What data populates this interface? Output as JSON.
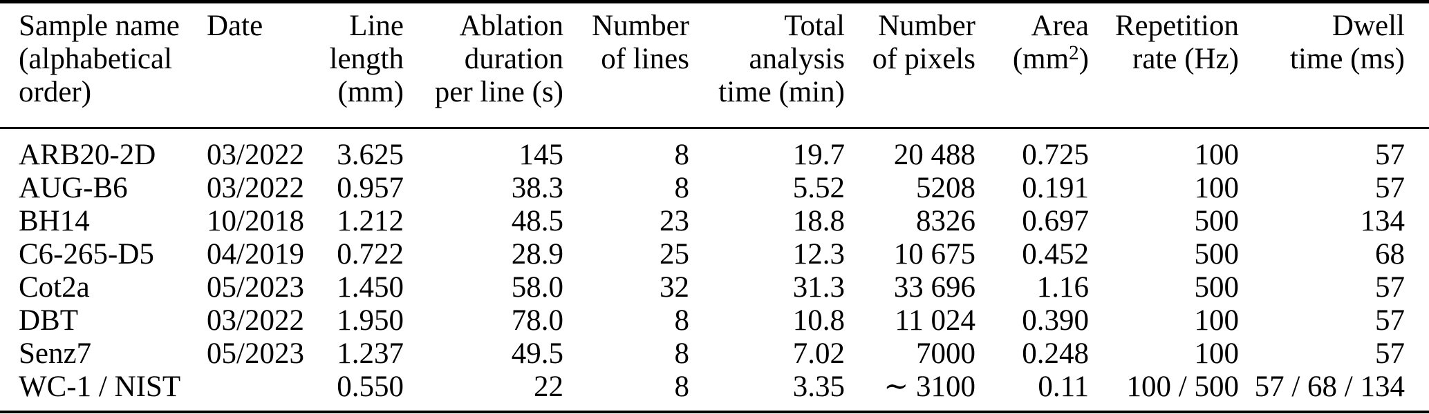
{
  "table": {
    "columns": [
      {
        "name": "sample-name",
        "lines": [
          "Sample name",
          "(alphabetical",
          "order)"
        ]
      },
      {
        "name": "date",
        "lines": [
          "Date",
          "",
          ""
        ]
      },
      {
        "name": "line-length",
        "lines": [
          "Line",
          "length",
          "(mm)"
        ]
      },
      {
        "name": "ablation-duration",
        "lines": [
          "Ablation",
          "duration",
          "per line (s)"
        ]
      },
      {
        "name": "number-of-lines",
        "lines": [
          "Number",
          "of lines",
          ""
        ]
      },
      {
        "name": "total-analysis-time",
        "lines": [
          "Total",
          "analysis",
          "time (min)"
        ]
      },
      {
        "name": "number-of-pixels",
        "lines": [
          "Number",
          "of pixels",
          ""
        ]
      },
      {
        "name": "area",
        "lines": [
          "Area",
          "",
          ""
        ],
        "unit_parts": [
          "(mm",
          "2",
          ")"
        ]
      },
      {
        "name": "repetition-rate",
        "lines": [
          "Repetition",
          "rate (Hz)",
          ""
        ]
      },
      {
        "name": "dwell-time",
        "lines": [
          "Dwell",
          "time (ms)",
          ""
        ]
      }
    ],
    "rows": [
      [
        "ARB20-2D",
        "03/2022",
        "3.625",
        "145",
        "8",
        "19.7",
        "20 488",
        "0.725",
        "100",
        "57"
      ],
      [
        "AUG-B6",
        "03/2022",
        "0.957",
        "38.3",
        "8",
        "5.52",
        "5208",
        "0.191",
        "100",
        "57"
      ],
      [
        "BH14",
        "10/2018",
        "1.212",
        "48.5",
        "23",
        "18.8",
        "8326",
        "0.697",
        "500",
        "134"
      ],
      [
        "C6-265-D5",
        "04/2019",
        "0.722",
        "28.9",
        "25",
        "12.3",
        "10 675",
        "0.452",
        "500",
        "68"
      ],
      [
        "Cot2a",
        "05/2023",
        "1.450",
        "58.0",
        "32",
        "31.3",
        "33 696",
        "1.16",
        "500",
        "57"
      ],
      [
        "DBT",
        "03/2022",
        "1.950",
        "78.0",
        "8",
        "10.8",
        "11 024",
        "0.390",
        "100",
        "57"
      ],
      [
        "Senz7",
        "05/2023",
        "1.237",
        "49.5",
        "8",
        "7.02",
        "7000",
        "0.248",
        "100",
        "57"
      ],
      [
        "WC-1 / NIST",
        "",
        "0.550",
        "22",
        "8",
        "3.35",
        "∼ 3100",
        "0.11",
        "100 / 500",
        "57 / 68 / 134"
      ]
    ]
  }
}
